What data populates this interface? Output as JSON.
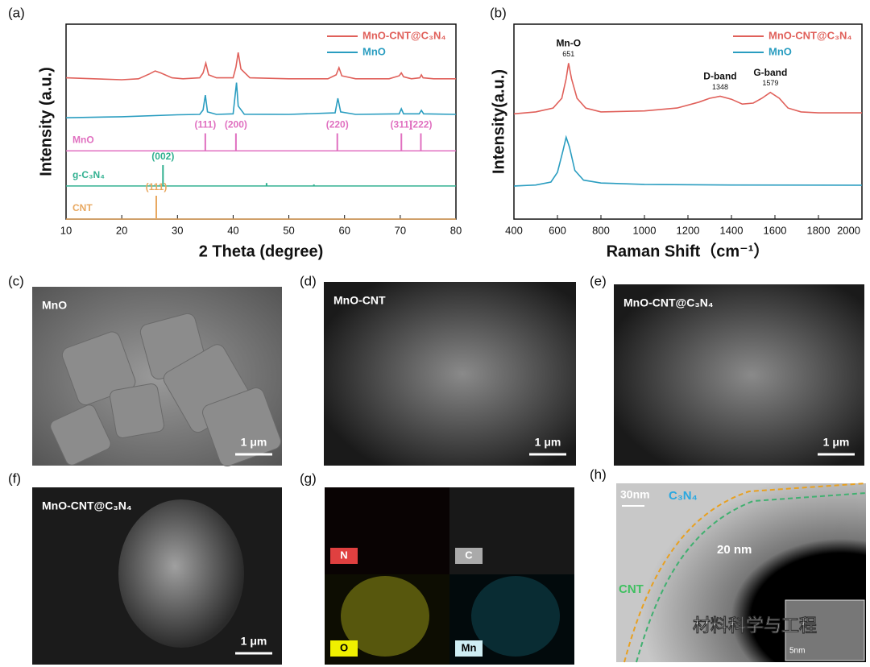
{
  "chart_data": [
    {
      "type": "line",
      "xlabel": "2 Theta (degree)",
      "ylabel": "Intensity (a.u.)",
      "xlim": [
        10,
        80
      ],
      "xticks": [
        10,
        20,
        30,
        40,
        50,
        60,
        70,
        80
      ],
      "ylim": [
        0,
        100
      ],
      "series": [
        {
          "name": "MnO-CNT@C₃N₄",
          "color": "#e0605a",
          "x": [
            10,
            15,
            20,
            23,
            25,
            26,
            27,
            29,
            31,
            34,
            34.6,
            35.1,
            35.6,
            37,
            40,
            40.5,
            40.9,
            41.4,
            43,
            50,
            57,
            58.5,
            59,
            59.5,
            62,
            68,
            69.8,
            70.2,
            70.6,
            72,
            73.5,
            73.8,
            74.1,
            76,
            80
          ],
          "values": [
            72.5,
            72,
            71.5,
            72,
            74.5,
            76,
            75,
            72.5,
            72,
            72.5,
            75,
            80,
            74,
            72.5,
            72.5,
            78,
            85.5,
            77,
            72.5,
            72,
            72,
            74,
            77.7,
            73.5,
            72,
            72,
            73.5,
            75,
            73,
            72,
            72.5,
            74,
            72.5,
            72,
            72
          ]
        },
        {
          "name": "MnO",
          "color": "#2a9dc0",
          "x": [
            10,
            20,
            30,
            34,
            34.6,
            35,
            35.4,
            37,
            40,
            40.3,
            40.6,
            40.9,
            42,
            50,
            58.3,
            58.8,
            59.3,
            62,
            69.8,
            70.2,
            70.6,
            73.4,
            73.8,
            74.2,
            80
          ],
          "values": [
            52,
            52.5,
            53.5,
            53.7,
            56,
            63.6,
            55,
            53.7,
            54,
            62,
            70,
            58,
            53.8,
            53.7,
            54.5,
            62,
            55,
            53.7,
            54,
            56.6,
            54,
            54,
            55.8,
            54,
            53.7
          ]
        }
      ],
      "references": [
        {
          "name": "MnO",
          "color": "#e070c0",
          "baseline": 35,
          "x": [
            35,
            40.5,
            58.7,
            70.2,
            73.7
          ],
          "values": [
            44,
            44,
            44,
            44,
            44
          ],
          "peak_labels": [
            "(111)",
            "(200)",
            "(220)",
            "(311)",
            "(222)"
          ]
        },
        {
          "name": "g-C₃N₄",
          "color": "#30b090",
          "baseline": 17,
          "x": [
            27.4,
            46,
            54.5
          ],
          "values": [
            27.7,
            18.5,
            17.8
          ],
          "peak_labels": [
            "(002)",
            null,
            null
          ]
        },
        {
          "name": "CNT",
          "color": "#e8a860",
          "baseline": 0,
          "x": [
            26.2
          ],
          "values": [
            12
          ],
          "peak_labels": [
            "(111)"
          ]
        }
      ]
    },
    {
      "type": "line",
      "xlabel": "Raman Shift（cm⁻¹）",
      "ylabel": "Intensity(a.u.)",
      "xlim": [
        400,
        2000
      ],
      "xticks": [
        400,
        600,
        800,
        1000,
        1200,
        1400,
        1600,
        1800,
        2000
      ],
      "ylim": [
        0,
        100
      ],
      "series": [
        {
          "name": "MnO-CNT@C₃N₄",
          "color": "#e0605a",
          "x": [
            400,
            500,
            580,
            620,
            640,
            651,
            665,
            690,
            730,
            800,
            1000,
            1150,
            1250,
            1300,
            1348,
            1400,
            1450,
            1500,
            1540,
            1579,
            1620,
            1660,
            1720,
            1800,
            2000
          ],
          "values": [
            54,
            55,
            57,
            62,
            72,
            80,
            72,
            62,
            57,
            55,
            55.5,
            57,
            60,
            62,
            63,
            61.5,
            59,
            59.5,
            62,
            65,
            62,
            57,
            55,
            54.5,
            54.5
          ]
        },
        {
          "name": "MnO",
          "color": "#2a9dc0",
          "x": [
            400,
            500,
            570,
            600,
            625,
            640,
            655,
            680,
            720,
            800,
            1000,
            1400,
            2000
          ],
          "values": [
            17,
            17.5,
            19,
            24,
            35,
            42,
            37,
            25,
            20,
            18.5,
            17.8,
            17.5,
            17.4
          ]
        }
      ],
      "annotations": [
        {
          "label": "Mn-O",
          "x": 651
        },
        {
          "label": "D-band",
          "x": 1348
        },
        {
          "label": "G-band",
          "x": 1579
        }
      ]
    }
  ],
  "panel_labels": [
    "(a)",
    "(b)",
    "(c)",
    "(d)",
    "(e)",
    "(f)",
    "(g)",
    "(h)"
  ],
  "images": [
    {
      "caption": "MnO",
      "scale_bar": "1 μm"
    },
    {
      "caption": "MnO-CNT",
      "scale_bar": "1 μm"
    },
    {
      "caption": "MnO-CNT@C₃N₄",
      "scale_bar": "1 μm"
    },
    {
      "caption": "MnO-CNT@C₃N₄",
      "scale_bar": "1 μm"
    }
  ],
  "eds_maps": [
    "N",
    "C",
    "O",
    "Mn"
  ],
  "tem": {
    "scale_bar": "30nm",
    "shell": "C₃N₄",
    "thickness": "20 nm",
    "core": "CNT",
    "inset_scale": "5nm"
  },
  "watermark": "材料科学与工程"
}
